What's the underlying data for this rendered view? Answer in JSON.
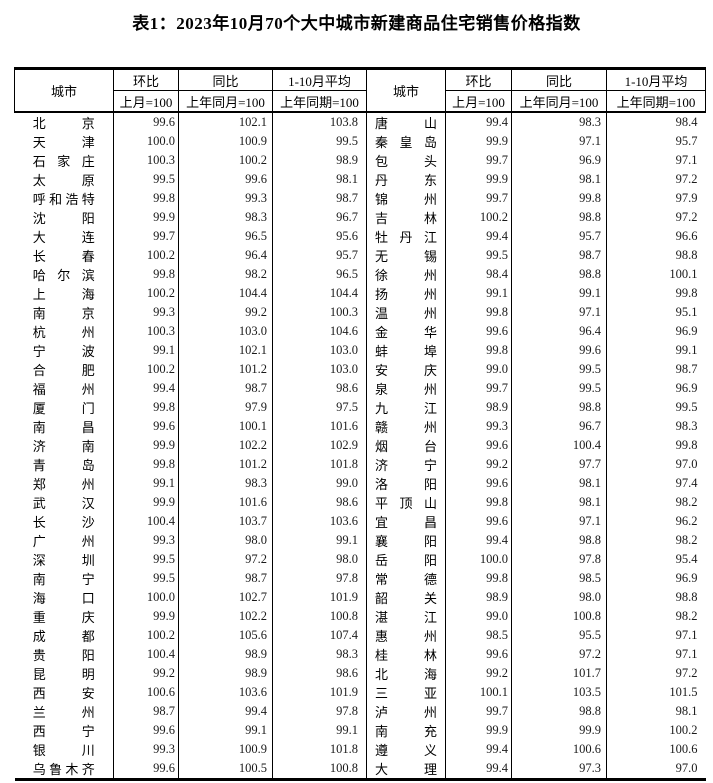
{
  "title": "表1：2023年10月70个大中城市新建商品住宅销售价格指数",
  "table": {
    "header": {
      "city": "城市",
      "mom": "环比",
      "mom_base": "上月=100",
      "yoy": "同比",
      "yoy_base": "上年同月=100",
      "avg": "1-10月平均",
      "avg_base": "上年同期=100"
    },
    "left_rows": [
      [
        "北京",
        "99.6",
        "102.1",
        "103.8"
      ],
      [
        "天津",
        "100.0",
        "100.9",
        "99.5"
      ],
      [
        "石家庄",
        "100.3",
        "100.2",
        "98.9"
      ],
      [
        "太原",
        "99.5",
        "99.6",
        "98.1"
      ],
      [
        "呼和浩特",
        "99.8",
        "99.3",
        "98.7"
      ],
      [
        "沈阳",
        "99.9",
        "98.3",
        "96.7"
      ],
      [
        "大连",
        "99.7",
        "96.5",
        "95.6"
      ],
      [
        "长春",
        "100.2",
        "96.4",
        "95.7"
      ],
      [
        "哈尔滨",
        "99.8",
        "98.2",
        "96.5"
      ],
      [
        "上海",
        "100.2",
        "104.4",
        "104.4"
      ],
      [
        "南京",
        "99.3",
        "99.2",
        "100.3"
      ],
      [
        "杭州",
        "100.3",
        "103.0",
        "104.6"
      ],
      [
        "宁波",
        "99.1",
        "102.1",
        "103.0"
      ],
      [
        "合肥",
        "100.2",
        "101.2",
        "103.0"
      ],
      [
        "福州",
        "99.4",
        "98.7",
        "98.6"
      ],
      [
        "厦门",
        "99.8",
        "97.9",
        "97.5"
      ],
      [
        "南昌",
        "99.6",
        "100.1",
        "101.6"
      ],
      [
        "济南",
        "99.9",
        "102.2",
        "102.9"
      ],
      [
        "青岛",
        "99.8",
        "101.2",
        "101.8"
      ],
      [
        "郑州",
        "99.1",
        "98.3",
        "99.0"
      ],
      [
        "武汉",
        "99.9",
        "101.6",
        "98.6"
      ],
      [
        "长沙",
        "100.4",
        "103.7",
        "103.6"
      ],
      [
        "广州",
        "99.3",
        "98.0",
        "99.1"
      ],
      [
        "深圳",
        "99.5",
        "97.2",
        "98.0"
      ],
      [
        "南宁",
        "99.5",
        "98.7",
        "97.8"
      ],
      [
        "海口",
        "100.0",
        "102.7",
        "101.9"
      ],
      [
        "重庆",
        "99.9",
        "102.2",
        "100.8"
      ],
      [
        "成都",
        "100.2",
        "105.6",
        "107.4"
      ],
      [
        "贵阳",
        "100.4",
        "98.9",
        "98.3"
      ],
      [
        "昆明",
        "99.2",
        "98.9",
        "98.6"
      ],
      [
        "西安",
        "100.6",
        "103.6",
        "101.9"
      ],
      [
        "兰州",
        "98.7",
        "99.4",
        "97.8"
      ],
      [
        "西宁",
        "99.6",
        "99.1",
        "99.1"
      ],
      [
        "银川",
        "99.3",
        "100.9",
        "101.8"
      ],
      [
        "乌鲁木齐",
        "99.6",
        "100.5",
        "100.8"
      ]
    ],
    "right_rows": [
      [
        "唐山",
        "99.4",
        "98.3",
        "98.4"
      ],
      [
        "秦皇岛",
        "99.9",
        "97.1",
        "95.7"
      ],
      [
        "包头",
        "99.7",
        "96.9",
        "97.1"
      ],
      [
        "丹东",
        "99.9",
        "98.1",
        "97.2"
      ],
      [
        "锦州",
        "99.7",
        "99.8",
        "97.9"
      ],
      [
        "吉林",
        "100.2",
        "98.8",
        "97.2"
      ],
      [
        "牡丹江",
        "99.4",
        "95.7",
        "96.6"
      ],
      [
        "无锡",
        "99.5",
        "98.7",
        "98.8"
      ],
      [
        "徐州",
        "98.4",
        "98.8",
        "100.1"
      ],
      [
        "扬州",
        "99.1",
        "99.1",
        "99.8"
      ],
      [
        "温州",
        "99.8",
        "97.1",
        "95.1"
      ],
      [
        "金华",
        "99.6",
        "96.4",
        "96.9"
      ],
      [
        "蚌埠",
        "99.8",
        "99.6",
        "99.1"
      ],
      [
        "安庆",
        "99.0",
        "99.5",
        "98.7"
      ],
      [
        "泉州",
        "99.7",
        "99.5",
        "96.9"
      ],
      [
        "九江",
        "98.9",
        "98.8",
        "99.5"
      ],
      [
        "赣州",
        "99.3",
        "96.7",
        "98.3"
      ],
      [
        "烟台",
        "99.6",
        "100.4",
        "99.8"
      ],
      [
        "济宁",
        "99.2",
        "97.7",
        "97.0"
      ],
      [
        "洛阳",
        "99.6",
        "98.1",
        "97.4"
      ],
      [
        "平顶山",
        "99.8",
        "98.1",
        "98.2"
      ],
      [
        "宜昌",
        "99.6",
        "97.1",
        "96.2"
      ],
      [
        "襄阳",
        "99.4",
        "98.8",
        "98.2"
      ],
      [
        "岳阳",
        "100.0",
        "97.8",
        "95.4"
      ],
      [
        "常德",
        "99.8",
        "98.5",
        "96.9"
      ],
      [
        "韶关",
        "98.9",
        "98.0",
        "98.8"
      ],
      [
        "湛江",
        "99.0",
        "100.8",
        "98.2"
      ],
      [
        "惠州",
        "98.5",
        "95.5",
        "97.1"
      ],
      [
        "桂林",
        "99.6",
        "97.2",
        "97.1"
      ],
      [
        "北海",
        "99.2",
        "101.7",
        "97.2"
      ],
      [
        "三亚",
        "100.1",
        "103.5",
        "101.5"
      ],
      [
        "泸州",
        "99.7",
        "98.8",
        "98.1"
      ],
      [
        "南充",
        "99.9",
        "99.9",
        "100.2"
      ],
      [
        "遵义",
        "99.4",
        "100.6",
        "100.6"
      ],
      [
        "大理",
        "99.4",
        "97.3",
        "97.0"
      ]
    ]
  }
}
